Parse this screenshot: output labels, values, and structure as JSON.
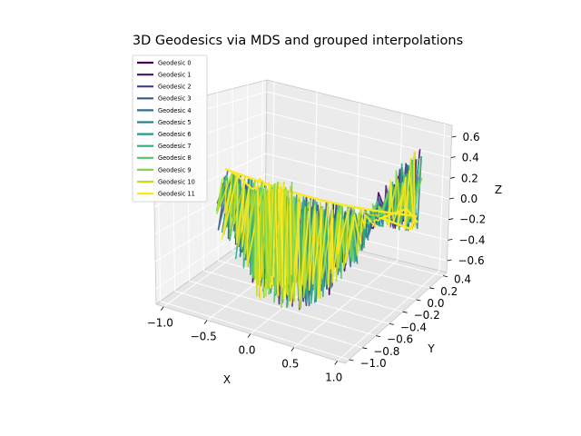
{
  "chart_data": {
    "type": "line",
    "projection": "3d",
    "title": "3D Geodesics via MDS and grouped interpolations",
    "xlabel": "X",
    "ylabel": "Y",
    "zlabel": "Z",
    "xlim": [
      -1.0,
      1.0
    ],
    "ylim": [
      -1.0,
      0.4
    ],
    "zlim": [
      -0.7,
      0.7
    ],
    "x_ticks": [
      "−1.0",
      "−0.5",
      "0.0",
      "0.5",
      "1.0"
    ],
    "y_ticks": [
      "−1.0",
      "−0.8",
      "−0.6",
      "−0.4",
      "−0.2",
      "0.0",
      "0.2",
      "0.4"
    ],
    "z_ticks": [
      "−0.6",
      "−0.4",
      "−0.2",
      "0.0",
      "0.2",
      "0.4",
      "0.6"
    ],
    "grid": true,
    "legend_position": "top-left",
    "series": [
      {
        "name": "Geodesic 0",
        "color": "#440154"
      },
      {
        "name": "Geodesic 1",
        "color": "#482173"
      },
      {
        "name": "Geodesic 2",
        "color": "#433e85"
      },
      {
        "name": "Geodesic 3",
        "color": "#38588c"
      },
      {
        "name": "Geodesic 4",
        "color": "#2d708e"
      },
      {
        "name": "Geodesic 5",
        "color": "#25858e"
      },
      {
        "name": "Geodesic 6",
        "color": "#1e9b8a"
      },
      {
        "name": "Geodesic 7",
        "color": "#2ab07f"
      },
      {
        "name": "Geodesic 8",
        "color": "#52c569"
      },
      {
        "name": "Geodesic 9",
        "color": "#86d549"
      },
      {
        "name": "Geodesic 10",
        "color": "#c2df23"
      },
      {
        "name": "Geodesic 11",
        "color": "#fde725"
      }
    ]
  }
}
